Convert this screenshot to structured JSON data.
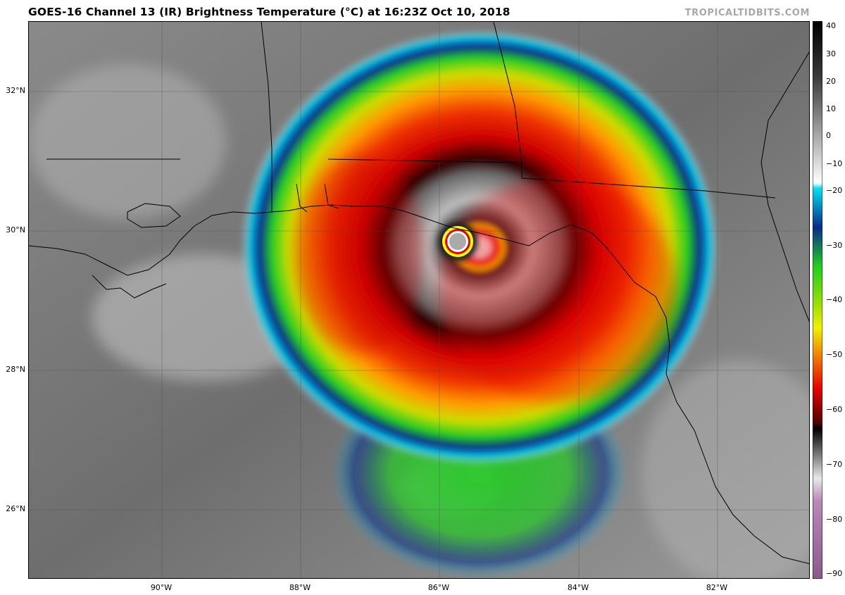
{
  "header": {
    "title": "GOES-16 Channel 13 (IR) Brightness Temperature (°C) at 16:23Z Oct 10, 2018",
    "credit": "TROPICALTIDBITS.COM"
  },
  "map": {
    "lat_labels": [
      "32°N",
      "30°N",
      "28°N",
      "26°N"
    ],
    "lon_labels": [
      "90°W",
      "88°W",
      "86°W",
      "84°W",
      "82°W"
    ]
  },
  "colorbar": {
    "unit": "°C",
    "ticks": [
      "40",
      "30",
      "20",
      "10",
      "0",
      "−10",
      "−20",
      "−30",
      "−40",
      "−50",
      "−60",
      "−70",
      "−80",
      "−90"
    ],
    "colors": {
      "warm_gray": "#4a4a4a",
      "cloud_white": "#e0e0e0",
      "cyan": "#00c8e6",
      "blue": "#0a2a8c",
      "green": "#14d214",
      "yellow": "#f0f000",
      "orange": "#f07800",
      "red": "#e60000",
      "dark_red": "#500000",
      "purple": "#9a6a9a"
    }
  }
}
